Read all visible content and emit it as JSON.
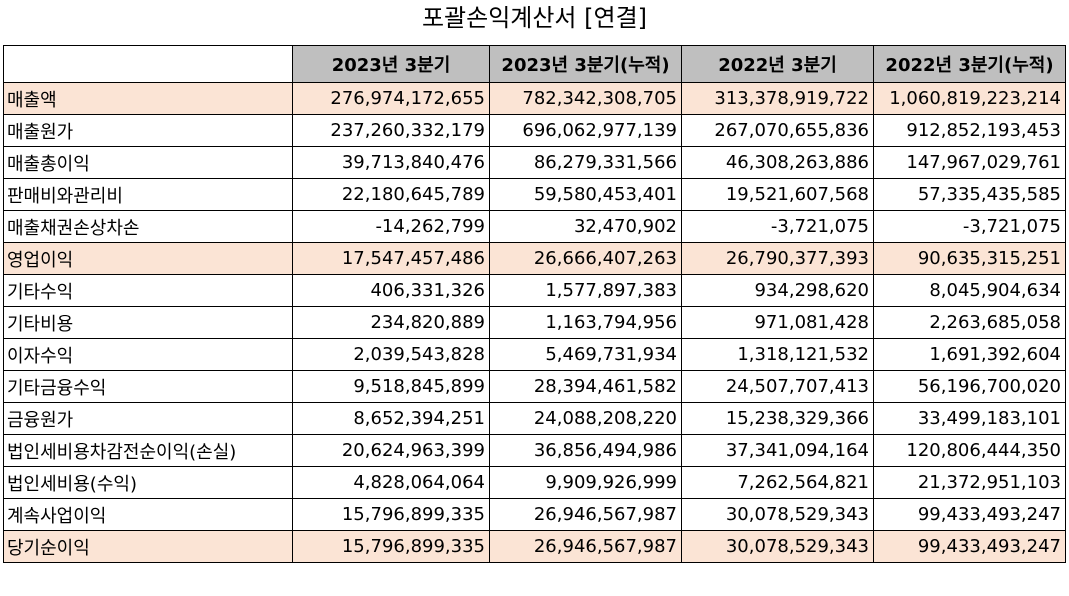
{
  "title": "포괄손익계산서 [연결]",
  "columns": [
    "",
    "2023년 3분기",
    "2023년 3분기(누적)",
    "2022년 3분기",
    "2022년 3분기(누적)"
  ],
  "colors": {
    "header_bg": "#bfbfbf",
    "highlight_bg": "#fbe4d5"
  },
  "rows": [
    {
      "label": "매출액",
      "values": [
        "276,974,172,655",
        "782,342,308,705",
        "313,378,919,722",
        "1,060,819,223,214"
      ],
      "highlight": true
    },
    {
      "label": "매출원가",
      "values": [
        "237,260,332,179",
        "696,062,977,139",
        "267,070,655,836",
        "912,852,193,453"
      ],
      "highlight": false
    },
    {
      "label": "매출총이익",
      "values": [
        "39,713,840,476",
        "86,279,331,566",
        "46,308,263,886",
        "147,967,029,761"
      ],
      "highlight": false
    },
    {
      "label": "판매비와관리비",
      "values": [
        "22,180,645,789",
        "59,580,453,401",
        "19,521,607,568",
        "57,335,435,585"
      ],
      "highlight": false
    },
    {
      "label": "매출채권손상차손",
      "values": [
        "-14,262,799",
        "32,470,902",
        "-3,721,075",
        "-3,721,075"
      ],
      "highlight": false
    },
    {
      "label": "영업이익",
      "values": [
        "17,547,457,486",
        "26,666,407,263",
        "26,790,377,393",
        "90,635,315,251"
      ],
      "highlight": true
    },
    {
      "label": "기타수익",
      "values": [
        "406,331,326",
        "1,577,897,383",
        "934,298,620",
        "8,045,904,634"
      ],
      "highlight": false
    },
    {
      "label": "기타비용",
      "values": [
        "234,820,889",
        "1,163,794,956",
        "971,081,428",
        "2,263,685,058"
      ],
      "highlight": false
    },
    {
      "label": "이자수익",
      "values": [
        "2,039,543,828",
        "5,469,731,934",
        "1,318,121,532",
        "1,691,392,604"
      ],
      "highlight": false
    },
    {
      "label": "기타금융수익",
      "values": [
        "9,518,845,899",
        "28,394,461,582",
        "24,507,707,413",
        "56,196,700,020"
      ],
      "highlight": false
    },
    {
      "label": "금융원가",
      "values": [
        "8,652,394,251",
        "24,088,208,220",
        "15,238,329,366",
        "33,499,183,101"
      ],
      "highlight": false
    },
    {
      "label": "법인세비용차감전순이익(손실)",
      "values": [
        "20,624,963,399",
        "36,856,494,986",
        "37,341,094,164",
        "120,806,444,350"
      ],
      "highlight": false
    },
    {
      "label": "법인세비용(수익)",
      "values": [
        "4,828,064,064",
        "9,909,926,999",
        "7,262,564,821",
        "21,372,951,103"
      ],
      "highlight": false
    },
    {
      "label": "계속사업이익",
      "values": [
        "15,796,899,335",
        "26,946,567,987",
        "30,078,529,343",
        "99,433,493,247"
      ],
      "highlight": false
    },
    {
      "label": "당기순이익",
      "values": [
        "15,796,899,335",
        "26,946,567,987",
        "30,078,529,343",
        "99,433,493,247"
      ],
      "highlight": true
    }
  ]
}
